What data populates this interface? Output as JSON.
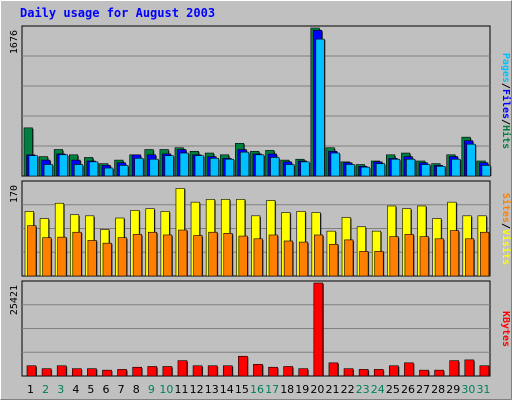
{
  "colors": {
    "background": "#c0c0c0",
    "title_text": "#0000ff",
    "hits": "#008040",
    "files": "#0000ff",
    "pages": "#00c0ff",
    "visits": "#ffff00",
    "sites": "#ff8000",
    "kbytes": "#ff0000",
    "weekend_label": "#00805c",
    "weekday_label": "#000000"
  },
  "chart_data": {
    "type": "bar",
    "title": "Daily usage for August 2003",
    "days": [
      "1",
      "2",
      "3",
      "4",
      "5",
      "6",
      "7",
      "8",
      "9",
      "10",
      "11",
      "12",
      "13",
      "14",
      "15",
      "16",
      "17",
      "18",
      "19",
      "20",
      "21",
      "22",
      "23",
      "24",
      "25",
      "26",
      "27",
      "28",
      "29",
      "30",
      "31"
    ],
    "weekend_days": [
      "2",
      "3",
      "9",
      "10",
      "16",
      "17",
      "23",
      "24",
      "30",
      "31"
    ],
    "panels": [
      {
        "id": "hits_files_pages",
        "max_label": "1676",
        "ymax": 1676,
        "legend": [
          {
            "name": "Pages",
            "color_key": "pages"
          },
          {
            "name": "/",
            "color_key": "weekday_label"
          },
          {
            "name": "Files",
            "color_key": "files"
          },
          {
            "name": "/",
            "color_key": "weekday_label"
          },
          {
            "name": "Hits",
            "color_key": "hits"
          }
        ],
        "series": [
          {
            "name": "Hits",
            "color_key": "hits",
            "values": [
              545,
              220,
              300,
              240,
              210,
              140,
              180,
              240,
              300,
              300,
              320,
              280,
              260,
              240,
              370,
              280,
              290,
              180,
              190,
              1676,
              320,
              160,
              130,
              170,
              240,
              260,
              170,
              140,
              240,
              440,
              170
            ]
          },
          {
            "name": "Files",
            "color_key": "files",
            "values": [
              240,
              180,
              250,
              180,
              170,
              120,
              150,
              240,
              240,
              250,
              300,
              240,
              220,
              200,
              300,
              250,
              250,
              160,
              170,
              1650,
              280,
              150,
              110,
              160,
              200,
              220,
              150,
              120,
              220,
              400,
              150
            ]
          },
          {
            "name": "Pages",
            "color_key": "pages",
            "values": [
              230,
              130,
              240,
              130,
              160,
              90,
              120,
              200,
              190,
              230,
              260,
              230,
              200,
              190,
              270,
              240,
              210,
              130,
              160,
              1550,
              260,
              130,
              100,
              140,
              190,
              190,
              130,
              110,
              190,
              360,
              120
            ]
          }
        ]
      },
      {
        "id": "visits_sites",
        "max_label": "170",
        "ymax": 170,
        "legend": [
          {
            "name": "Sites",
            "color_key": "sites"
          },
          {
            "name": "/",
            "color_key": "weekday_label"
          },
          {
            "name": "Visits",
            "color_key": "visits"
          }
        ],
        "series": [
          {
            "name": "Visits",
            "color_key": "visits",
            "values": [
              118,
              105,
              133,
              112,
              110,
              85,
              106,
              120,
              123,
              118,
              160,
              135,
              140,
              140,
              140,
              110,
              138,
              116,
              118,
              116,
              82,
              107,
              90,
              82,
              128,
              123,
              128,
              105,
              135,
              110,
              110
            ]
          },
          {
            "name": "Sites",
            "color_key": "sites",
            "values": [
              92,
              70,
              71,
              80,
              65,
              60,
              70,
              76,
              80,
              75,
              84,
              74,
              80,
              78,
              73,
              68,
              75,
              64,
              62,
              75,
              58,
              66,
              45,
              45,
              72,
              76,
              72,
              68,
              83,
              68,
              80
            ]
          }
        ]
      },
      {
        "id": "kbytes",
        "max_label": "25421",
        "ymax": 25421,
        "legend": [
          {
            "name": "KBytes",
            "color_key": "kbytes"
          }
        ],
        "series": [
          {
            "name": "KBytes",
            "color_key": "kbytes",
            "values": [
              2800,
              2000,
              2800,
              2000,
              2000,
              1600,
              1800,
              2400,
              2600,
              2600,
              4200,
              2800,
              2800,
              2800,
              5400,
              3200,
              2400,
              2600,
              2000,
              25421,
              3600,
              2000,
              1800,
              1800,
              2800,
              3600,
              1600,
              1600,
              4200,
              4400,
              2800
            ]
          }
        ]
      }
    ]
  }
}
